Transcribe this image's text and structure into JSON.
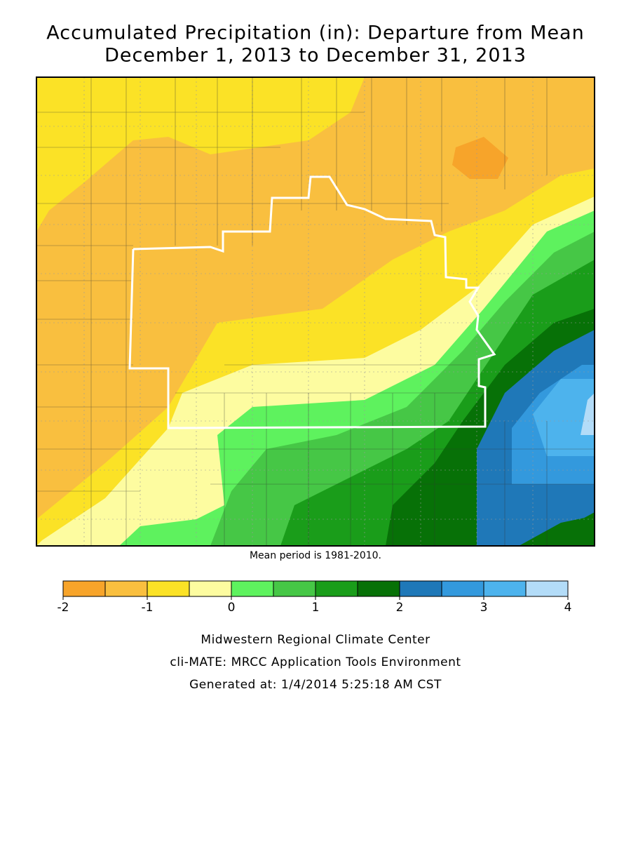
{
  "title": [
    "Accumulated Precipitation (in): Departure from Mean",
    "December 1, 2013 to December 31, 2013"
  ],
  "note": "Mean period is 1981-2010.",
  "legend": {
    "bins": [
      -2,
      -1.5,
      -1,
      -0.5,
      0,
      0.5,
      1,
      1.5,
      2,
      2.5,
      3,
      3.5,
      4
    ],
    "colors": [
      "#f7a42a",
      "#f9bf3f",
      "#fbe226",
      "#fdfca0",
      "#5ef25e",
      "#46c746",
      "#1a9d1a",
      "#077107",
      "#1f78b8",
      "#3399dd",
      "#4db3ed",
      "#b3dcf8"
    ],
    "ticks": [
      -2,
      -1,
      0,
      1,
      2,
      3,
      4
    ]
  },
  "footer": [
    "Midwestern Regional Climate Center",
    "cli-MATE: MRCC Application Tools Environment",
    "Generated at: 1/4/2014 5:25:18 AM CST"
  ]
}
